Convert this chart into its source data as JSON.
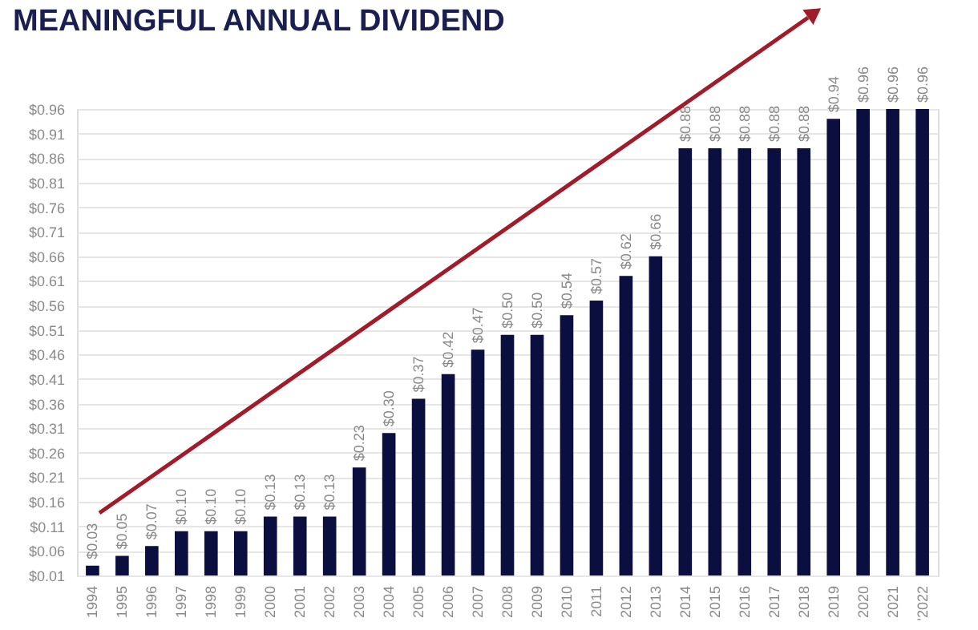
{
  "chart_data": {
    "type": "bar",
    "title": "MEANINGFUL ANNUAL DIVIDEND",
    "categories": [
      "1994",
      "1995",
      "1996",
      "1997",
      "1998",
      "1999",
      "2000",
      "2001",
      "2002",
      "2003",
      "2004",
      "2005",
      "2006",
      "2007",
      "2008",
      "2009",
      "2010",
      "2011",
      "2012",
      "2013",
      "2014",
      "2015",
      "2016",
      "2017",
      "2018",
      "2019",
      "2020",
      "2021",
      "'2022"
    ],
    "values": [
      0.03,
      0.05,
      0.07,
      0.1,
      0.1,
      0.1,
      0.13,
      0.13,
      0.13,
      0.23,
      0.3,
      0.37,
      0.42,
      0.47,
      0.5,
      0.5,
      0.54,
      0.57,
      0.62,
      0.66,
      0.88,
      0.88,
      0.88,
      0.88,
      0.88,
      0.94,
      0.96,
      0.96,
      0.96
    ],
    "value_labels": [
      "$0.03",
      "$0.05",
      "$0.07",
      "$0.10",
      "$0.10",
      "$0.10",
      "$0.13",
      "$0.13",
      "$0.13",
      "$0.23",
      "$0.30",
      "$0.37",
      "$0.42",
      "$0.47",
      "$0.50",
      "$0.50",
      "$0.54",
      "$0.57",
      "$0.62",
      "$0.66",
      "$0.88",
      "$0.88",
      "$0.88",
      "$0.88",
      "$0.88",
      "$0.94",
      "$0.96",
      "$0.96",
      "$0.96"
    ],
    "color": "#0b0f3f",
    "ylim": [
      0.01,
      0.96
    ],
    "yticks": [
      {
        "value": 0.01,
        "label": "$0.01"
      },
      {
        "value": 0.06,
        "label": "$0.06"
      },
      {
        "value": 0.11,
        "label": "$0.11"
      },
      {
        "value": 0.16,
        "label": "$0.16"
      },
      {
        "value": 0.21,
        "label": "$0.21"
      },
      {
        "value": 0.26,
        "label": "$0.26"
      },
      {
        "value": 0.31,
        "label": "$0.31"
      },
      {
        "value": 0.36,
        "label": "$0.36"
      },
      {
        "value": 0.41,
        "label": "$0.41"
      },
      {
        "value": 0.46,
        "label": "$0.46"
      },
      {
        "value": 0.51,
        "label": "$0.51"
      },
      {
        "value": 0.56,
        "label": "$0.56"
      },
      {
        "value": 0.61,
        "label": "$0.61"
      },
      {
        "value": 0.66,
        "label": "$0.66"
      },
      {
        "value": 0.71,
        "label": "$0.71"
      },
      {
        "value": 0.76,
        "label": "$0.76"
      },
      {
        "value": 0.81,
        "label": "$0.81"
      },
      {
        "value": 0.86,
        "label": "$0.86"
      },
      {
        "value": 0.91,
        "label": "$0.91"
      },
      {
        "value": 0.96,
        "label": "$0.96"
      }
    ],
    "grid": "y"
  }
}
